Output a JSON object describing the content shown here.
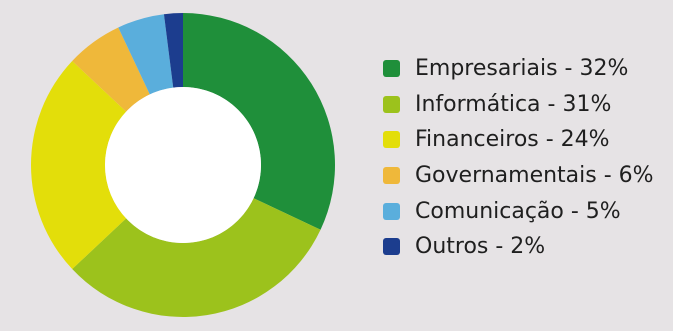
{
  "chart_data": {
    "type": "pie",
    "style": "donut",
    "labels": [
      "Empresariais",
      "Informática",
      "Financeiros",
      "Governamentais",
      "Comunicação",
      "Outros"
    ],
    "values": [
      32,
      31,
      24,
      6,
      5,
      2
    ],
    "colors": [
      "#1f8f3a",
      "#9cc21c",
      "#e3de0a",
      "#efb83a",
      "#5aaedc",
      "#1c3d8e"
    ],
    "legend_text": [
      "Empresariais - 32%",
      "Informática - 31%",
      "Financeiros - 24%",
      "Governamentais - 6%",
      "Comunicação - 5%",
      "Outros - 2%"
    ],
    "legend_position": "right",
    "title": "",
    "background": "#e6e3e5"
  }
}
